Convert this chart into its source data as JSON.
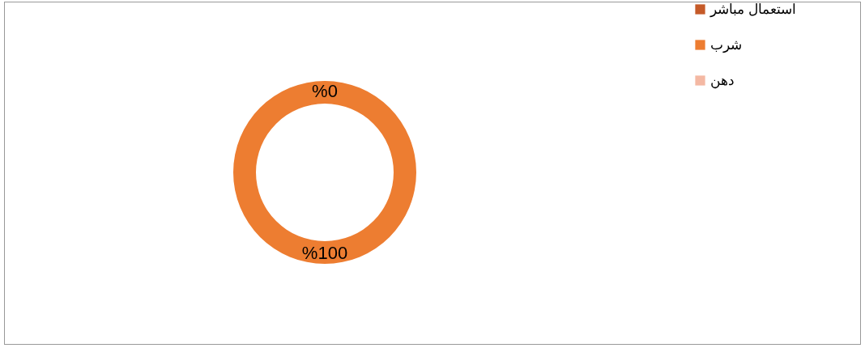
{
  "chart_data": {
    "type": "donut",
    "categories": [
      "استعمال مباشر",
      "شرب",
      "دهن"
    ],
    "values": [
      0,
      100,
      0
    ],
    "colors": [
      "#c55a28",
      "#ed7d31",
      "#f4b8a3"
    ],
    "value_labels": [
      "%0",
      "%100",
      null
    ],
    "legend": "right"
  }
}
